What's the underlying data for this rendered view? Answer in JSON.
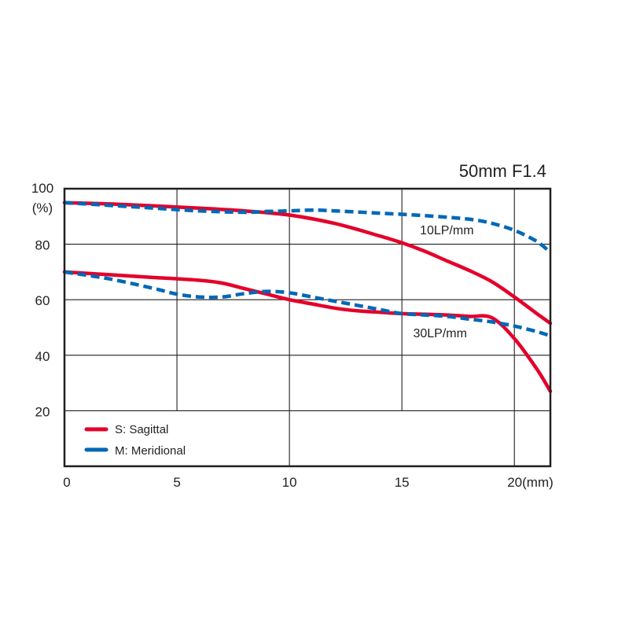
{
  "chart_data": {
    "type": "line",
    "title": "50mm F1.4",
    "xlabel": "",
    "ylabel": "",
    "x_unit_label": "(mm)",
    "y_unit_label": "(%)",
    "xlim": [
      0,
      21.6
    ],
    "ylim": [
      0,
      100
    ],
    "x_ticks": [
      0,
      5,
      10,
      15,
      20
    ],
    "x_tick_labels": [
      "0",
      "5",
      "10",
      "15",
      "20(mm)"
    ],
    "y_ticks": [
      20,
      40,
      60,
      80,
      100
    ],
    "y_tick_labels": [
      "20",
      "40",
      "60",
      "80",
      "100"
    ],
    "grid": true,
    "legend_position": "bottom-left",
    "legend": [
      {
        "label": "S: Sagittal",
        "color": "#e4002b",
        "style": "solid"
      },
      {
        "label": "M: Meridional",
        "color": "#0068b7",
        "style": "dashed"
      }
    ],
    "annotations": [
      {
        "text": "10LP/mm",
        "x": 15.8,
        "y": 83.5
      },
      {
        "text": "30LP/mm",
        "x": 15.5,
        "y": 46.5
      }
    ],
    "series": [
      {
        "name": "S: Sagittal",
        "group": "10LP/mm",
        "color": "#e4002b",
        "style": "solid",
        "x": [
          0,
          2,
          4,
          6,
          8,
          10,
          12,
          14,
          15,
          16,
          17,
          18,
          19,
          20,
          21,
          21.6
        ],
        "y": [
          95,
          94.5,
          93.8,
          93,
          92,
          90.5,
          87.5,
          83,
          80.5,
          77.5,
          74,
          70.5,
          66.5,
          61,
          55,
          51.5
        ]
      },
      {
        "name": "M: Meridional",
        "group": "10LP/mm",
        "color": "#0068b7",
        "style": "dashed",
        "x": [
          0,
          2,
          4,
          6,
          8,
          9,
          10,
          11,
          12,
          14,
          16,
          18,
          19,
          20,
          21,
          21.6
        ],
        "y": [
          95,
          94,
          93,
          92,
          91.5,
          91.8,
          92,
          92.3,
          92,
          91.2,
          90.3,
          89,
          87.5,
          85,
          81,
          77
        ]
      },
      {
        "name": "S: Sagittal",
        "group": "30LP/mm",
        "color": "#e4002b",
        "style": "solid",
        "x": [
          0,
          2,
          4,
          6,
          7,
          8,
          9,
          10,
          11,
          12,
          13,
          14,
          15,
          16,
          17,
          18,
          19,
          20,
          21,
          21.6
        ],
        "y": [
          70,
          69,
          68,
          67,
          66,
          64,
          62,
          60,
          58.5,
          57,
          56,
          55.5,
          55,
          54.8,
          54.5,
          54,
          53.5,
          46,
          35,
          27
        ]
      },
      {
        "name": "M: Meridional",
        "group": "30LP/mm",
        "color": "#0068b7",
        "style": "dashed",
        "x": [
          0,
          2,
          4,
          5,
          6,
          7,
          8,
          9,
          10,
          11,
          12,
          13,
          14,
          15,
          16,
          17,
          18,
          19,
          20,
          21,
          21.6
        ],
        "y": [
          70,
          67.5,
          64,
          62,
          61,
          61,
          62.2,
          63,
          62.5,
          61,
          59.5,
          58,
          56.5,
          55,
          54.5,
          54,
          53,
          52,
          50.5,
          48.5,
          47
        ]
      }
    ]
  }
}
